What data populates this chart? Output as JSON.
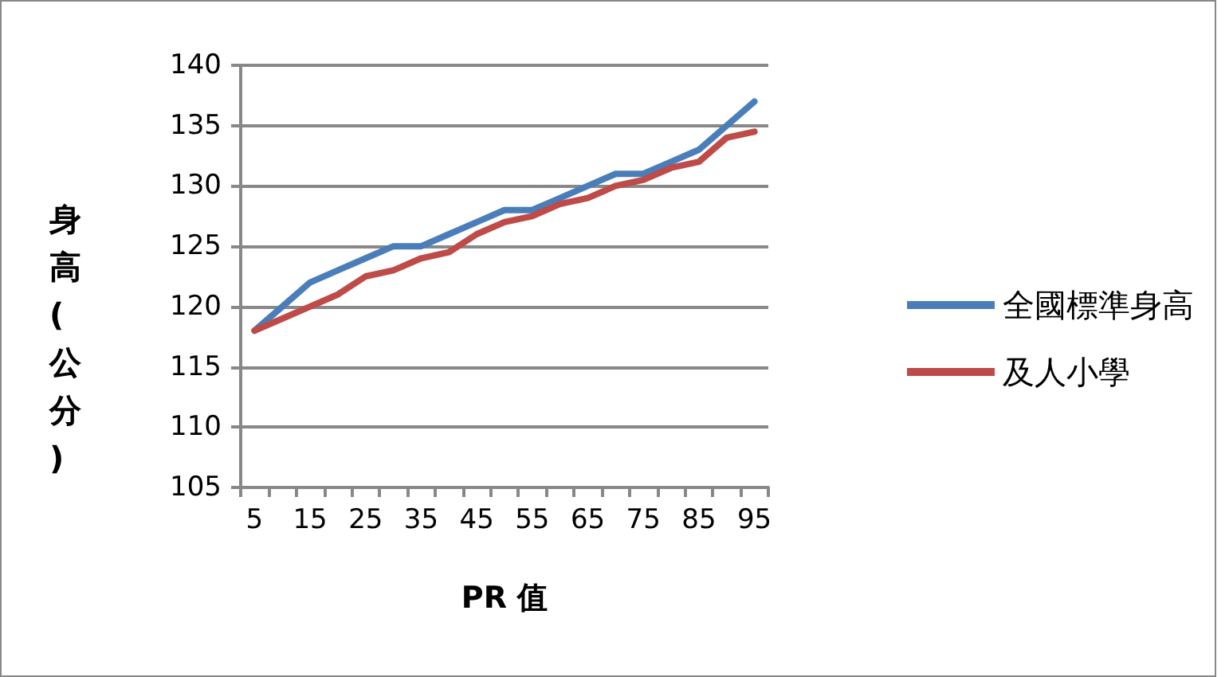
{
  "chart_data": {
    "type": "line",
    "xlabel": "PR 值",
    "ylabel": "身高 (公分)",
    "categories": [
      "5",
      null,
      "15",
      null,
      "25",
      null,
      "35",
      null,
      "45",
      null,
      "55",
      null,
      "65",
      null,
      "75",
      null,
      "85",
      null,
      "95"
    ],
    "series": [
      {
        "name": "全國標準身高",
        "color": "#4a7ebb",
        "values": [
          118,
          120,
          122,
          123,
          124,
          125,
          125,
          126,
          127,
          128,
          128,
          129,
          130,
          131,
          131,
          132,
          133,
          135,
          137
        ]
      },
      {
        "name": "及人小學",
        "color": "#be4b48",
        "values": [
          118,
          119,
          120,
          121,
          122.5,
          123,
          124,
          124.5,
          126,
          127,
          127.5,
          128.5,
          129,
          130,
          130.5,
          131.5,
          132,
          134,
          134.5
        ]
      }
    ],
    "ylim": [
      105,
      140
    ],
    "yticks": [
      105,
      110,
      115,
      120,
      125,
      130,
      135,
      140
    ],
    "grid": "y",
    "legend": "right",
    "marker": "none",
    "line_style": "solid"
  }
}
